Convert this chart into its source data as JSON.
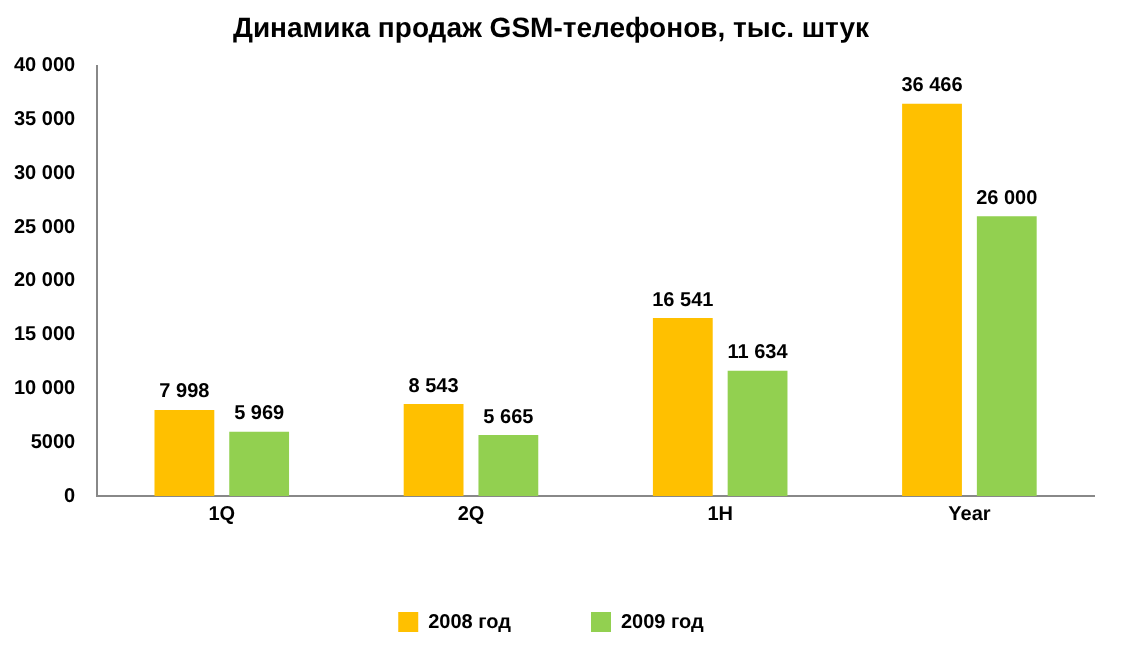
{
  "chart_data": {
    "type": "bar",
    "title": "Динамика продаж GSM-телефонов, тыс. штук",
    "categories": [
      "1Q",
      "2Q",
      "1H",
      "Year"
    ],
    "series": [
      {
        "name": "2008 год",
        "color": "#ffc000",
        "values": [
          7998,
          8543,
          16541,
          36466
        ],
        "value_labels": [
          "7 998",
          "8 543",
          "16 541",
          "36 466"
        ]
      },
      {
        "name": "2009 год",
        "color": "#92d050",
        "values": [
          5969,
          5665,
          11634,
          26000
        ],
        "value_labels": [
          "5 969",
          "5 665",
          "11 634",
          "26 000"
        ]
      }
    ],
    "ylim": [
      0,
      40000
    ],
    "yticks": [
      0,
      5000,
      {
        "value": 10000,
        "label": "10 000"
      },
      {
        "value": 15000,
        "label": "15 000"
      },
      {
        "value": 20000,
        "label": "20 000"
      },
      {
        "value": 25000,
        "label": "25 000"
      },
      {
        "value": 30000,
        "label": "30 000"
      },
      {
        "value": 35000,
        "label": "35 000"
      },
      {
        "value": 40000,
        "label": "40 000"
      }
    ],
    "grid": false,
    "legend": "bottom"
  }
}
